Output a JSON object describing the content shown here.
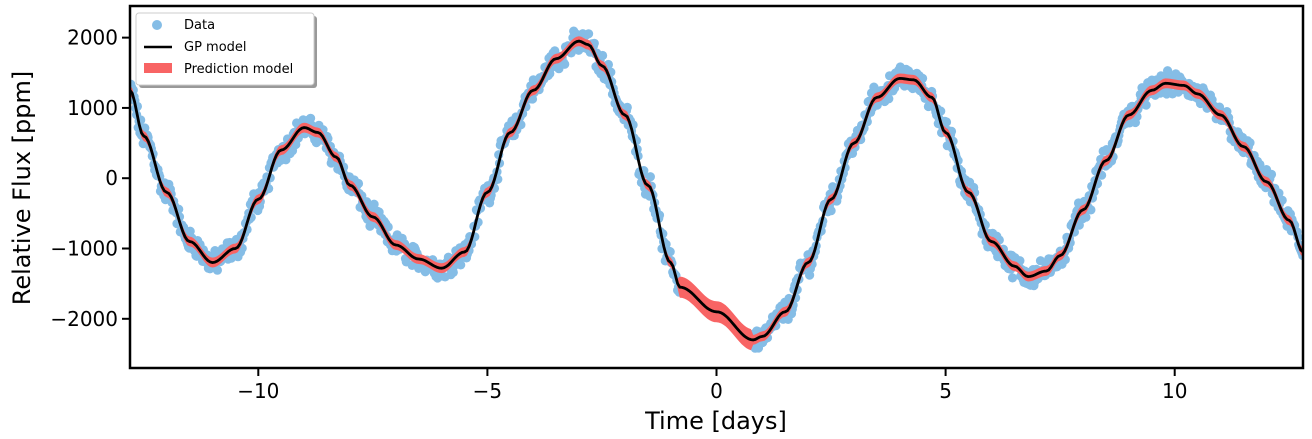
{
  "chart_data": {
    "type": "scatter",
    "xlabel": "Time [days]",
    "ylabel": "Relative Flux [ppm]",
    "xlim": [
      -12.8,
      12.8
    ],
    "ylim": [
      -2700,
      2450
    ],
    "xticks": [
      -10,
      -5,
      0,
      5,
      10
    ],
    "xtick_labels": [
      "−10",
      "−5",
      "0",
      "5",
      "10"
    ],
    "yticks": [
      -2000,
      -1000,
      0,
      1000,
      2000
    ],
    "ytick_labels": [
      "−2000",
      "−1000",
      "0",
      "1000",
      "2000"
    ],
    "grid": false,
    "legend_position": "top-left",
    "legend": [
      "Data",
      "GP model",
      "Prediction model"
    ],
    "colors": {
      "data": "#85bde6",
      "gp": "#000000",
      "prediction": "#f86464"
    },
    "data_gap": [
      -0.8,
      0.8
    ],
    "series": [
      {
        "name": "GP model",
        "kind": "line",
        "x": [
          -12.8,
          -12.5,
          -12.0,
          -11.5,
          -11.0,
          -10.5,
          -10.0,
          -9.5,
          -9.0,
          -8.7,
          -8.3,
          -8.0,
          -7.5,
          -7.0,
          -6.5,
          -6.0,
          -5.5,
          -5.0,
          -4.5,
          -4.0,
          -3.5,
          -3.0,
          -2.8,
          -2.5,
          -2.0,
          -1.5,
          -1.0,
          -0.8,
          0.0,
          0.8,
          1.0,
          1.5,
          2.0,
          2.5,
          3.0,
          3.5,
          4.0,
          4.3,
          4.7,
          5.0,
          5.5,
          6.0,
          6.5,
          6.8,
          7.2,
          7.5,
          8.0,
          8.5,
          9.0,
          9.5,
          9.8,
          10.2,
          10.5,
          11.0,
          11.5,
          12.0,
          12.5,
          12.8
        ],
        "y": [
          1250,
          600,
          -200,
          -900,
          -1200,
          -1000,
          -300,
          400,
          720,
          650,
          300,
          -100,
          -550,
          -950,
          -1150,
          -1280,
          -1050,
          -200,
          650,
          1250,
          1700,
          1950,
          1900,
          1600,
          900,
          -100,
          -1200,
          -1550,
          -1900,
          -2300,
          -2250,
          -1900,
          -1200,
          -300,
          500,
          1150,
          1420,
          1400,
          1150,
          650,
          -200,
          -900,
          -1250,
          -1400,
          -1320,
          -1100,
          -450,
          250,
          900,
          1250,
          1350,
          1320,
          1200,
          900,
          450,
          -50,
          -600,
          -1050
        ]
      }
    ]
  }
}
